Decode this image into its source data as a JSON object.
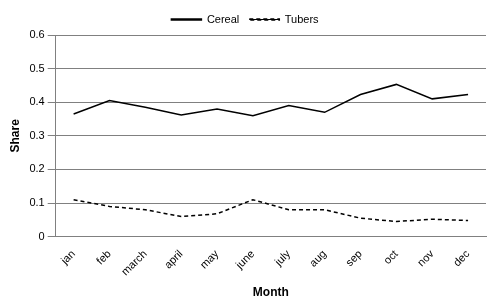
{
  "chart_data": {
    "type": "line",
    "x_label": "Month",
    "y_label": "Share",
    "categories": [
      "jan",
      "feb",
      "march",
      "april",
      "may",
      "june",
      "july",
      "aug",
      "sep",
      "oct",
      "nov",
      "dec"
    ],
    "series": [
      {
        "name": "Cereal",
        "color": "#000000",
        "line_style": "solid",
        "marker": "none",
        "values": [
          0.365,
          0.405,
          0.385,
          0.362,
          0.38,
          0.36,
          0.39,
          0.37,
          0.423,
          0.453,
          0.41,
          0.423
        ]
      },
      {
        "name": "Tubers",
        "color": "#000000",
        "line_style": "dashed",
        "marker": "none",
        "values": [
          0.11,
          0.09,
          0.08,
          0.06,
          0.068,
          0.11,
          0.08,
          0.08,
          0.055,
          0.045,
          0.052,
          0.048
        ]
      }
    ],
    "ylim": [
      0,
      0.6
    ],
    "yticks": [
      0,
      0.1,
      0.2,
      0.3,
      0.4,
      0.5,
      0.6
    ],
    "grid": true,
    "legend": "top"
  }
}
